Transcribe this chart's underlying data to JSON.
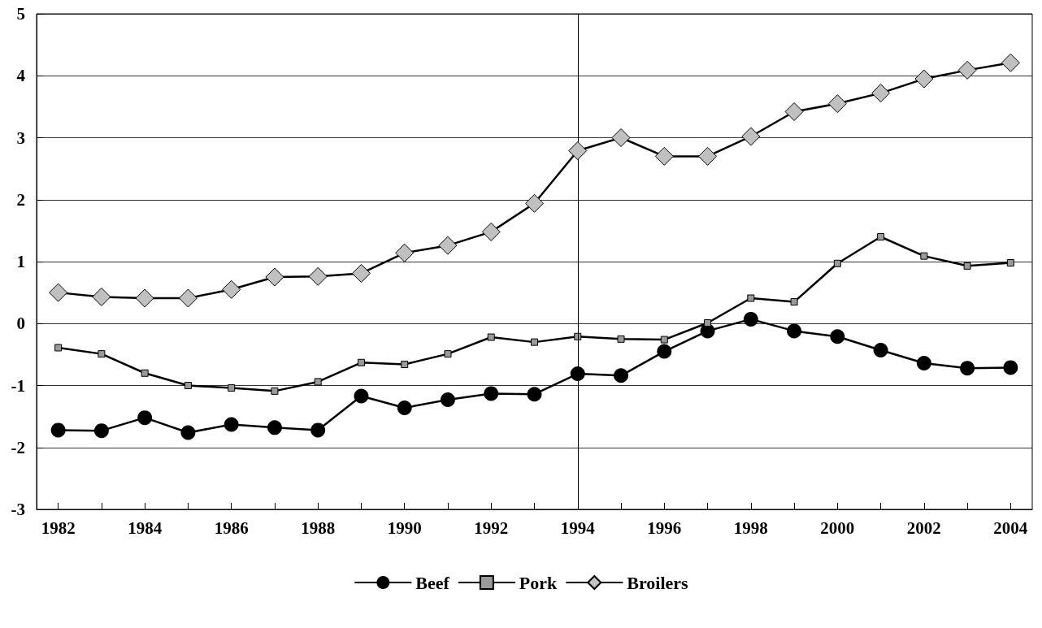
{
  "chart_data": {
    "type": "line",
    "x": [
      1982,
      1983,
      1984,
      1985,
      1986,
      1987,
      1988,
      1989,
      1990,
      1991,
      1992,
      1993,
      1994,
      1995,
      1996,
      1997,
      1998,
      1999,
      2000,
      2001,
      2002,
      2003,
      2004
    ],
    "series": [
      {
        "name": "Beef",
        "color": "#000000",
        "marker": "circle",
        "values": [
          -1.72,
          -1.73,
          -1.52,
          -1.76,
          -1.63,
          -1.68,
          -1.72,
          -1.17,
          -1.36,
          -1.23,
          -1.13,
          -1.14,
          -0.81,
          -0.84,
          -0.45,
          -0.12,
          0.07,
          -0.12,
          -0.21,
          -0.43,
          -0.64,
          -0.72,
          -0.71
        ]
      },
      {
        "name": "Pork",
        "color": "#9a9a9a",
        "marker": "square",
        "values": [
          -0.39,
          -0.49,
          -0.8,
          -1.0,
          -1.04,
          -1.09,
          -0.94,
          -0.63,
          -0.66,
          -0.49,
          -0.22,
          -0.3,
          -0.21,
          -0.25,
          -0.26,
          0.01,
          0.41,
          0.35,
          0.97,
          1.4,
          1.09,
          0.93,
          0.98
        ]
      },
      {
        "name": "Broilers",
        "color": "#c0c0c0",
        "marker": "diamond",
        "values": [
          0.5,
          0.43,
          0.41,
          0.41,
          0.55,
          0.75,
          0.76,
          0.81,
          1.14,
          1.26,
          1.48,
          1.94,
          2.79,
          3.0,
          2.7,
          2.7,
          3.02,
          3.42,
          3.55,
          3.72,
          3.95,
          4.09,
          4.21
        ]
      }
    ],
    "xlim": [
      1981.5,
      2004.5
    ],
    "xticks": [
      1982,
      {
        "value": 1983,
        "label": null
      },
      1984,
      {
        "value": 1985,
        "label": null
      },
      1986,
      {
        "value": 1987,
        "label": null
      },
      1988,
      {
        "value": 1989,
        "label": null
      },
      1990,
      {
        "value": 1991,
        "label": null
      },
      1992,
      {
        "value": 1993,
        "label": null
      },
      1994,
      {
        "value": 1995,
        "label": null
      },
      1996,
      {
        "value": 1997,
        "label": null
      },
      1998,
      {
        "value": 1999,
        "label": null
      },
      2000,
      {
        "value": 2001,
        "label": null
      },
      2002,
      {
        "value": 2003,
        "label": null
      },
      2004
    ],
    "ylim": [
      -3,
      5
    ],
    "yticks": [
      -3,
      -2,
      -1,
      0,
      1,
      2,
      3,
      4,
      5
    ],
    "ref_lines": [
      {
        "axis": "x",
        "value": 1994,
        "color": "#000000"
      }
    ],
    "grid": "y",
    "legend": "bottom",
    "line_style": "solid"
  }
}
